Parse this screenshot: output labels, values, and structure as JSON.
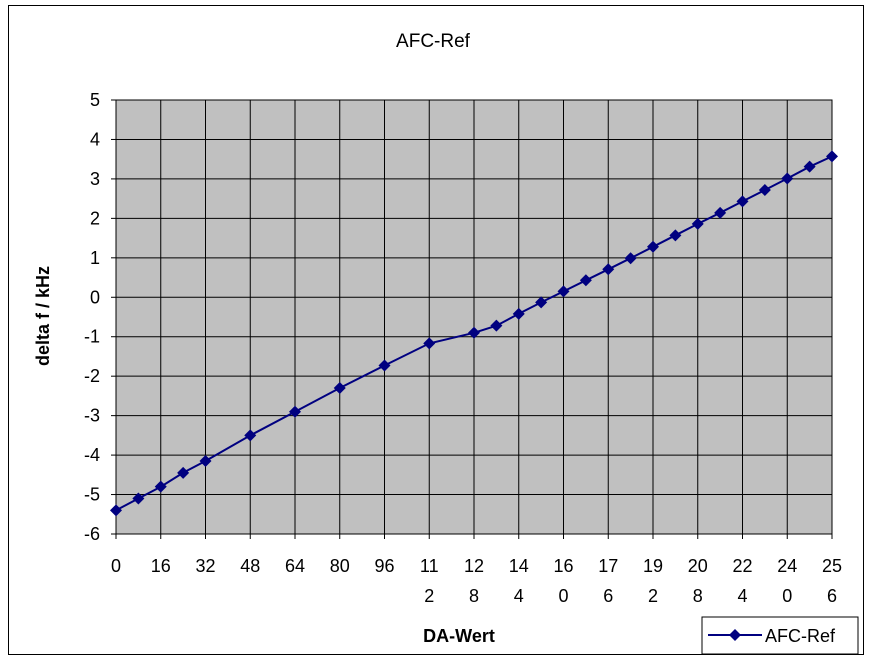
{
  "chart_data": {
    "type": "line",
    "title": "AFC-Ref",
    "xlabel": "DA-Wert",
    "ylabel": "delta f / kHz",
    "xlim": [
      0,
      256
    ],
    "ylim": [
      -6,
      5
    ],
    "yticks": [
      5,
      4,
      3,
      2,
      1,
      0,
      -1,
      -2,
      -3,
      -4,
      -5,
      -6
    ],
    "xtick_labels": [
      {
        "x": 0,
        "lines": [
          "0"
        ]
      },
      {
        "x": 16,
        "lines": [
          "16"
        ]
      },
      {
        "x": 32,
        "lines": [
          "32"
        ]
      },
      {
        "x": 48,
        "lines": [
          "48"
        ]
      },
      {
        "x": 64,
        "lines": [
          "64"
        ]
      },
      {
        "x": 80,
        "lines": [
          "80"
        ]
      },
      {
        "x": 96,
        "lines": [
          "96"
        ]
      },
      {
        "x": 112,
        "lines": [
          "11",
          "2"
        ]
      },
      {
        "x": 128,
        "lines": [
          "12",
          "8"
        ]
      },
      {
        "x": 144,
        "lines": [
          "14",
          "4"
        ]
      },
      {
        "x": 160,
        "lines": [
          "16",
          "0"
        ]
      },
      {
        "x": 176,
        "lines": [
          "17",
          "6"
        ]
      },
      {
        "x": 192,
        "lines": [
          "19",
          "2"
        ]
      },
      {
        "x": 208,
        "lines": [
          "20",
          "8"
        ]
      },
      {
        "x": 224,
        "lines": [
          "22",
          "4"
        ]
      },
      {
        "x": 240,
        "lines": [
          "24",
          "0"
        ]
      },
      {
        "x": 256,
        "lines": [
          "25",
          "6"
        ]
      }
    ],
    "grid": true,
    "legend_position": "bottom-right",
    "series": [
      {
        "name": "AFC-Ref",
        "color": "#000080",
        "marker": "diamond",
        "points": [
          [
            0,
            -5.4
          ],
          [
            8,
            -5.1
          ],
          [
            16,
            -4.8
          ],
          [
            24,
            -4.45
          ],
          [
            32,
            -4.15
          ],
          [
            48,
            -3.5
          ],
          [
            64,
            -2.9
          ],
          [
            80,
            -2.3
          ],
          [
            96,
            -1.73
          ],
          [
            112,
            -1.17
          ],
          [
            128,
            -0.9
          ],
          [
            136,
            -0.72
          ],
          [
            144,
            -0.42
          ],
          [
            152,
            -0.13
          ],
          [
            160,
            0.15
          ],
          [
            168,
            0.43
          ],
          [
            176,
            0.71
          ],
          [
            184,
            0.99
          ],
          [
            192,
            1.28
          ],
          [
            200,
            1.57
          ],
          [
            208,
            1.86
          ],
          [
            216,
            2.14
          ],
          [
            224,
            2.43
          ],
          [
            232,
            2.72
          ],
          [
            240,
            3.01
          ],
          [
            248,
            3.31
          ],
          [
            256,
            3.57
          ]
        ]
      }
    ]
  },
  "colors": {
    "plot_background": "#c0c0c0",
    "grid_line": "#000000",
    "series_line": "#000080"
  }
}
